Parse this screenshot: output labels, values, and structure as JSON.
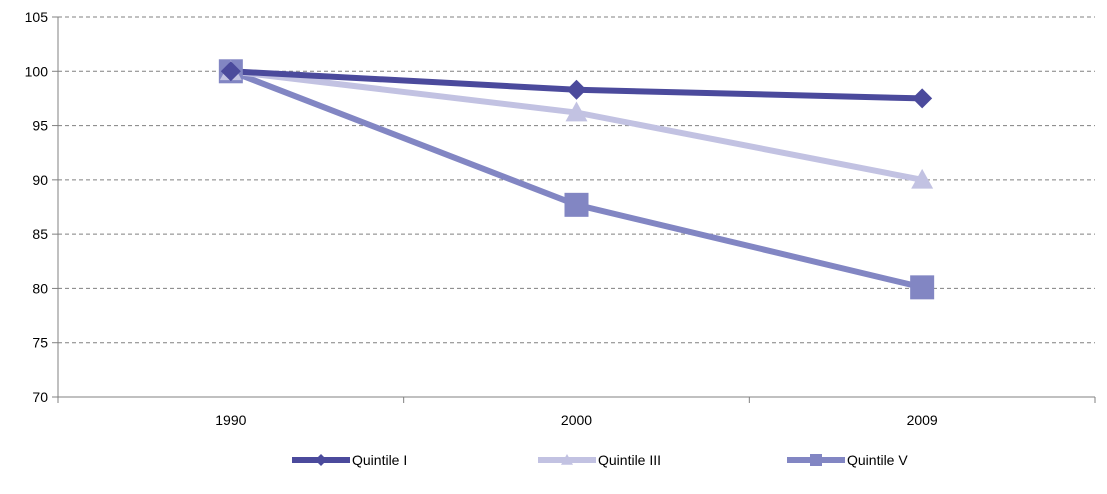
{
  "chart_data": {
    "type": "line",
    "categories": [
      "1990",
      "2000",
      "2009"
    ],
    "series": [
      {
        "name": "Quintile I",
        "values": [
          100,
          98.3,
          97.5
        ],
        "color": "#4b4a9c",
        "marker": "diamond"
      },
      {
        "name": "Quintile III",
        "values": [
          100,
          96.2,
          90.0
        ],
        "color": "#c2c2e2",
        "marker": "triangle"
      },
      {
        "name": "Quintile V",
        "values": [
          100,
          87.7,
          80.1
        ],
        "color": "#8286c3",
        "marker": "square"
      }
    ],
    "ylim": [
      70,
      105
    ],
    "yticks": [
      70,
      75,
      80,
      85,
      90,
      95,
      100,
      105
    ],
    "grid": true,
    "legend_position": "bottom"
  }
}
